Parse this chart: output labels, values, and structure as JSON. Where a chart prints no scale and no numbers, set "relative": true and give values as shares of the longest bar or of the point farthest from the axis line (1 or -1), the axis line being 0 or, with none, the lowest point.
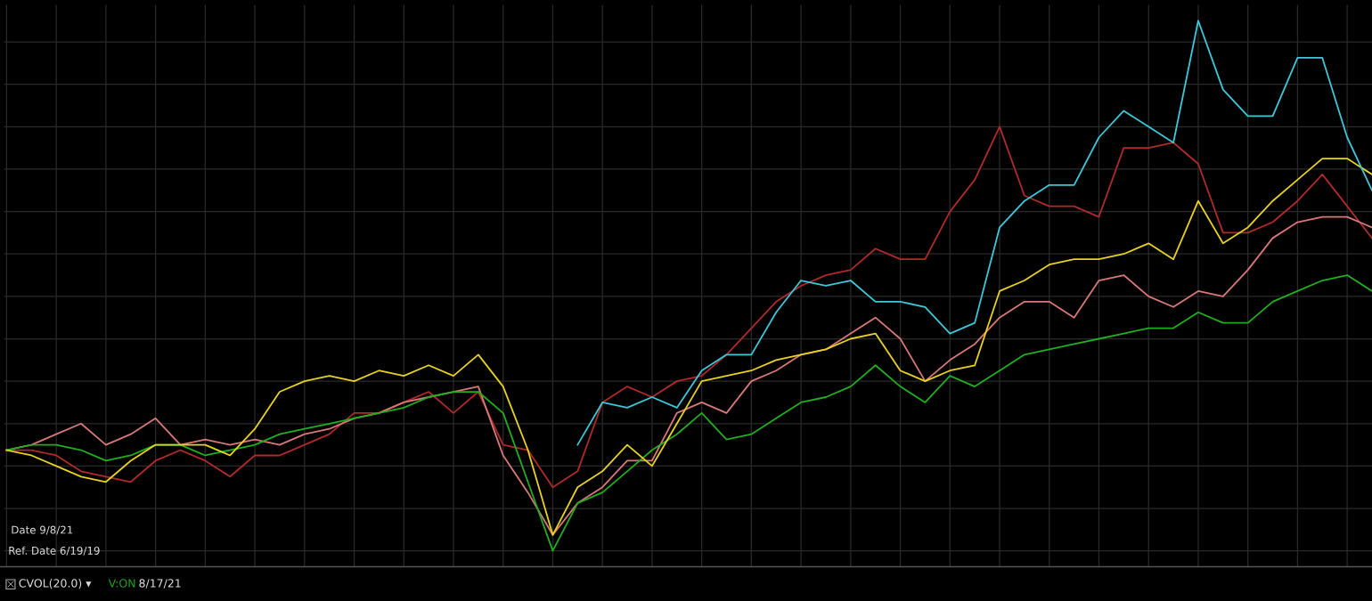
{
  "chart_data": {
    "type": "line",
    "relative": true,
    "grid": true,
    "tick_labels": false,
    "marker": "none",
    "line_style": "solid",
    "categories": [
      null,
      null,
      null,
      null,
      null,
      null,
      null,
      null,
      null,
      null,
      null,
      null,
      null,
      null,
      null,
      null,
      null,
      null,
      null,
      null,
      null,
      null,
      null,
      null,
      null,
      null,
      null,
      null,
      null,
      null,
      null,
      null,
      null,
      null,
      null,
      null,
      null,
      null,
      null,
      null,
      null,
      null,
      null,
      null,
      null,
      null,
      null,
      null,
      null,
      null,
      null,
      null,
      null,
      null,
      null,
      null
    ],
    "series": [
      {
        "color": "#b02a2a",
        "values": [
          0.19,
          0.19,
          0.18,
          0.15,
          0.14,
          0.13,
          0.17,
          0.19,
          0.17,
          0.14,
          0.18,
          0.18,
          0.2,
          0.22,
          0.26,
          0.26,
          0.28,
          0.3,
          0.26,
          0.3,
          0.2,
          0.19,
          0.12,
          0.15,
          0.28,
          0.31,
          0.29,
          0.32,
          0.33,
          0.37,
          0.42,
          0.47,
          0.5,
          0.52,
          0.53,
          0.57,
          0.55,
          0.55,
          0.64,
          0.7,
          0.8,
          0.67,
          0.65,
          0.65,
          0.63,
          0.76,
          0.76,
          0.77,
          0.73,
          0.6,
          0.6,
          0.62,
          0.66,
          0.71,
          0.65,
          0.59
        ]
      },
      {
        "color": "#d87878",
        "values": [
          0.19,
          0.2,
          0.22,
          0.24,
          0.2,
          0.22,
          0.25,
          0.2,
          0.21,
          0.2,
          0.21,
          0.2,
          0.22,
          0.23,
          0.25,
          0.26,
          0.28,
          0.29,
          0.3,
          0.31,
          0.18,
          0.11,
          0.03,
          0.09,
          0.12,
          0.17,
          0.17,
          0.26,
          0.28,
          0.26,
          0.32,
          0.34,
          0.37,
          0.38,
          0.41,
          0.44,
          0.4,
          0.32,
          0.36,
          0.39,
          0.44,
          0.47,
          0.47,
          0.44,
          0.51,
          0.52,
          0.48,
          0.46,
          0.49,
          0.48,
          0.53,
          0.59,
          0.62,
          0.63,
          0.63,
          0.61
        ]
      },
      {
        "color": "#1fae1f",
        "values": [
          0.19,
          0.2,
          0.2,
          0.19,
          0.17,
          0.18,
          0.2,
          0.2,
          0.18,
          0.19,
          0.2,
          0.22,
          0.23,
          0.24,
          0.25,
          0.26,
          0.27,
          0.29,
          0.3,
          0.3,
          0.26,
          0.13,
          0.0,
          0.09,
          0.11,
          0.15,
          0.19,
          0.22,
          0.26,
          0.21,
          0.22,
          0.25,
          0.28,
          0.29,
          0.31,
          0.35,
          0.31,
          0.28,
          0.33,
          0.31,
          0.34,
          0.37,
          0.38,
          0.39,
          0.4,
          0.41,
          0.42,
          0.42,
          0.45,
          0.43,
          0.43,
          0.47,
          0.49,
          0.51,
          0.52,
          0.49
        ]
      },
      {
        "color": "#e8d21e",
        "values": [
          0.19,
          0.18,
          0.16,
          0.14,
          0.13,
          0.17,
          0.2,
          0.2,
          0.2,
          0.18,
          0.23,
          0.3,
          0.32,
          0.33,
          0.32,
          0.34,
          0.33,
          0.35,
          0.33,
          0.37,
          0.31,
          0.19,
          0.03,
          0.12,
          0.15,
          0.2,
          0.16,
          0.24,
          0.32,
          0.33,
          0.34,
          0.36,
          0.37,
          0.38,
          0.4,
          0.41,
          0.34,
          0.32,
          0.34,
          0.35,
          0.49,
          0.51,
          0.54,
          0.55,
          0.55,
          0.56,
          0.58,
          0.55,
          0.66,
          0.58,
          0.61,
          0.66,
          0.7,
          0.74,
          0.74,
          0.71
        ]
      },
      {
        "color": "#3cc8d8",
        "values": [
          null,
          null,
          null,
          null,
          null,
          null,
          null,
          null,
          null,
          null,
          null,
          null,
          null,
          null,
          null,
          null,
          null,
          null,
          null,
          null,
          null,
          null,
          null,
          0.2,
          0.28,
          0.27,
          0.29,
          0.27,
          0.34,
          0.37,
          0.37,
          0.45,
          0.51,
          0.5,
          0.51,
          0.47,
          0.47,
          0.46,
          0.41,
          0.43,
          0.61,
          0.66,
          0.69,
          0.69,
          0.78,
          0.83,
          0.8,
          0.77,
          1.0,
          0.87,
          0.82,
          0.82,
          0.93,
          0.93,
          0.78,
          0.68
        ]
      }
    ],
    "annotations": [
      "Date 9/8/21",
      "Ref. Date 6/19/19",
      "CVOL(20.0) ▾",
      "V:ON",
      "8/17/21"
    ]
  }
}
